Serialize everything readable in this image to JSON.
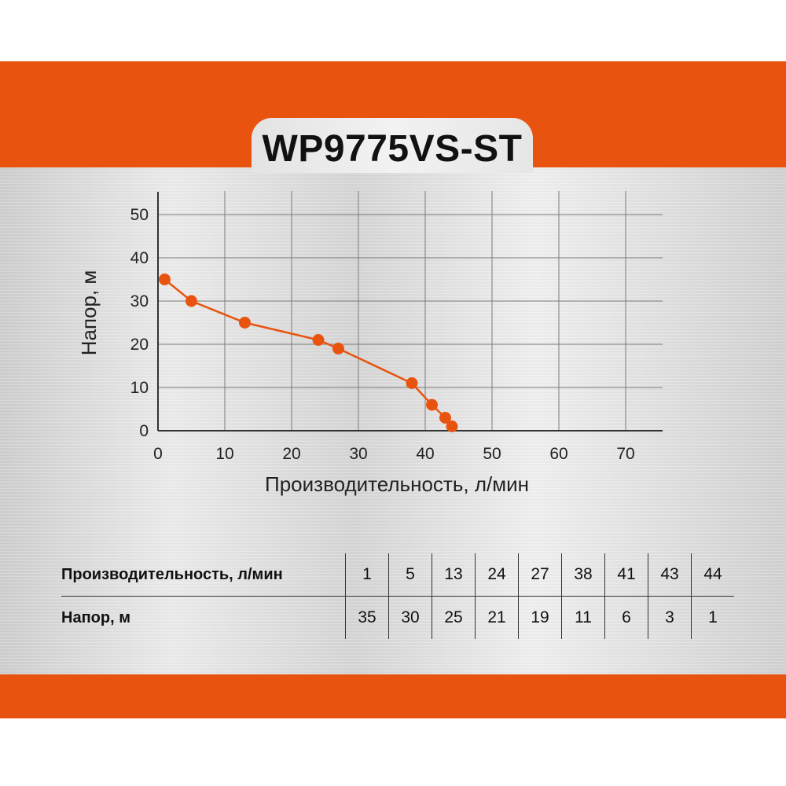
{
  "header": {
    "title": "WP9775VS-ST"
  },
  "colors": {
    "accent": "#e8540f",
    "line": "#e8540f",
    "marker": "#e8540f",
    "grid": "#7a7a7a"
  },
  "chart_data": {
    "type": "line",
    "title": "WP9775VS-ST",
    "xlabel": "Производительность, л/мин",
    "ylabel": "Напор, м",
    "xlim": [
      0,
      75
    ],
    "ylim": [
      0,
      50
    ],
    "xticks": [
      "0",
      "10",
      "20",
      "30",
      "40",
      "50",
      "60",
      "70"
    ],
    "yticks": [
      "0",
      "10",
      "20",
      "30",
      "40",
      "50"
    ],
    "grid": true,
    "x": [
      1,
      5,
      13,
      24,
      27,
      38,
      41,
      43,
      44
    ],
    "series": [
      {
        "values": [
          35,
          30,
          25,
          21,
          19,
          11,
          6,
          3,
          1
        ]
      }
    ]
  },
  "table": {
    "rows": [
      {
        "label": "Производительность, л/мин",
        "values": [
          "1",
          "5",
          "13",
          "24",
          "27",
          "38",
          "41",
          "43",
          "44"
        ]
      },
      {
        "label": "Напор, м",
        "values": [
          "35",
          "30",
          "25",
          "21",
          "19",
          "11",
          "6",
          "3",
          "1"
        ]
      }
    ]
  }
}
